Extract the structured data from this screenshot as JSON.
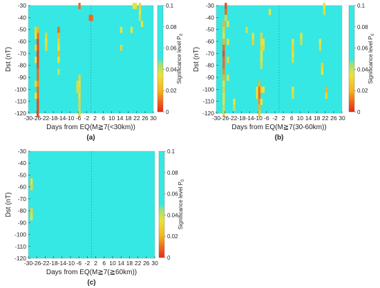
{
  "figure": {
    "colorbar": {
      "label": "Significance level  P",
      "label_subscript": "0",
      "ticks": [
        "0.1",
        "0.08",
        "0.06",
        "0.04",
        "0.02",
        "0"
      ],
      "tick_values": [
        0.1,
        0.08,
        0.06,
        0.04,
        0.02,
        0
      ],
      "stops": [
        {
          "value": 0.0,
          "color": "#e8281c"
        },
        {
          "value": 0.01,
          "color": "#f06a1a"
        },
        {
          "value": 0.02,
          "color": "#f4b51e"
        },
        {
          "value": 0.035,
          "color": "#e9e23a"
        },
        {
          "value": 0.045,
          "color": "#9ee07a"
        },
        {
          "value": 0.05,
          "color": "#35e8e4"
        },
        {
          "value": 0.1,
          "color": "#35e8e4"
        }
      ]
    }
  },
  "chart_data": [
    {
      "type": "heatmap",
      "panel_label": "(a)",
      "xlabel": "Days from EQ(M≧7(<30km))",
      "ylabel": "Dst (nT)",
      "xlim": [
        -30,
        30
      ],
      "ylim": [
        -120,
        -30
      ],
      "x_ticks": [
        -30,
        -26,
        -22,
        -18,
        -14,
        -10,
        -6,
        -2,
        2,
        6,
        10,
        14,
        18,
        22,
        26,
        30
      ],
      "y_ticks": [
        -30,
        -40,
        -50,
        -60,
        -70,
        -80,
        -90,
        -100,
        -110,
        -120
      ],
      "background_value": 0.1,
      "cells": [
        {
          "day": -26,
          "dst": -50,
          "p": 0.02
        },
        {
          "day": -26,
          "dst": -55,
          "p": 0.01
        },
        {
          "day": -26,
          "dst": -60,
          "p": 0.005
        },
        {
          "day": -26,
          "dst": -65,
          "p": 0.005
        },
        {
          "day": -26,
          "dst": -70,
          "p": 0.003
        },
        {
          "day": -26,
          "dst": -75,
          "p": 0.003
        },
        {
          "day": -26,
          "dst": -80,
          "p": 0.005
        },
        {
          "day": -26,
          "dst": -85,
          "p": 0.01
        },
        {
          "day": -26,
          "dst": -90,
          "p": 0.01
        },
        {
          "day": -26,
          "dst": -95,
          "p": 0.015
        },
        {
          "day": -26,
          "dst": -100,
          "p": 0.01
        },
        {
          "day": -26,
          "dst": -105,
          "p": 0.01
        },
        {
          "day": -26,
          "dst": -110,
          "p": 0.005
        },
        {
          "day": -26,
          "dst": -115,
          "p": 0.005
        },
        {
          "day": -26,
          "dst": -120,
          "p": 0.005
        },
        {
          "day": -27,
          "dst": -50,
          "p": 0.03
        },
        {
          "day": -27,
          "dst": -55,
          "p": 0.035
        },
        {
          "day": -27,
          "dst": -65,
          "p": 0.03
        },
        {
          "day": -27,
          "dst": -75,
          "p": 0.035
        },
        {
          "day": -27,
          "dst": -95,
          "p": 0.03
        },
        {
          "day": -27,
          "dst": -105,
          "p": 0.035
        },
        {
          "day": -22,
          "dst": -55,
          "p": 0.03
        },
        {
          "day": -22,
          "dst": -60,
          "p": 0.035
        },
        {
          "day": -22,
          "dst": -65,
          "p": 0.03
        },
        {
          "day": -16,
          "dst": -50,
          "p": 0.01
        },
        {
          "day": -16,
          "dst": -55,
          "p": 0.02
        },
        {
          "day": -16,
          "dst": -60,
          "p": 0.03
        },
        {
          "day": -16,
          "dst": -65,
          "p": 0.035
        },
        {
          "day": -16,
          "dst": -70,
          "p": 0.02
        },
        {
          "day": -16,
          "dst": -75,
          "p": 0.035
        },
        {
          "day": -16,
          "dst": -85,
          "p": 0.04
        },
        {
          "day": -6,
          "dst": -30,
          "p": 0.01
        },
        {
          "day": -6,
          "dst": -90,
          "p": 0.03
        },
        {
          "day": -6,
          "dst": -95,
          "p": 0.035
        },
        {
          "day": -6,
          "dst": -100,
          "p": 0.03
        },
        {
          "day": -6,
          "dst": -105,
          "p": 0.035
        },
        {
          "day": -6,
          "dst": -110,
          "p": 0.03
        },
        {
          "day": -6,
          "dst": -115,
          "p": 0.04
        },
        {
          "day": -6,
          "dst": -120,
          "p": 0.035
        },
        {
          "day": -7,
          "dst": -95,
          "p": 0.04
        },
        {
          "day": -7,
          "dst": -100,
          "p": 0.04
        },
        {
          "day": -1,
          "dst": -40,
          "p": 0.01
        },
        {
          "day": 0,
          "dst": -40,
          "p": 0.01
        },
        {
          "day": 14,
          "dst": -50,
          "p": 0.035
        },
        {
          "day": 14,
          "dst": -65,
          "p": 0.03
        },
        {
          "day": 19,
          "dst": -50,
          "p": 0.035
        },
        {
          "day": 20,
          "dst": -30,
          "p": 0.035
        },
        {
          "day": 21,
          "dst": -30,
          "p": 0.035
        },
        {
          "day": 23,
          "dst": -30,
          "p": 0.03
        },
        {
          "day": 23,
          "dst": -35,
          "p": 0.035
        },
        {
          "day": 23,
          "dst": -40,
          "p": 0.04
        },
        {
          "day": 24,
          "dst": -45,
          "p": 0.035
        }
      ]
    },
    {
      "type": "heatmap",
      "panel_label": "(b)",
      "xlabel": "Days from EQ(M≧7(30-60km))",
      "ylabel": "Dst (nT)",
      "xlim": [
        -30,
        30
      ],
      "ylim": [
        -120,
        -30
      ],
      "x_ticks": [
        -30,
        -26,
        -22,
        -18,
        -14,
        -10,
        -6,
        -2,
        2,
        6,
        10,
        14,
        18,
        22,
        26,
        30
      ],
      "y_ticks": [
        -30,
        -40,
        -50,
        -60,
        -70,
        -80,
        -90,
        -100,
        -110,
        -120
      ],
      "background_value": 0.1,
      "cells": [
        {
          "day": -26,
          "dst": -30,
          "p": 0.005
        },
        {
          "day": -26,
          "dst": -35,
          "p": 0.01
        },
        {
          "day": -26,
          "dst": -40,
          "p": 0.03
        },
        {
          "day": -27,
          "dst": -45,
          "p": 0.02
        },
        {
          "day": -27,
          "dst": -50,
          "p": 0.03
        },
        {
          "day": -27,
          "dst": -55,
          "p": 0.035
        },
        {
          "day": -27,
          "dst": -60,
          "p": 0.02
        },
        {
          "day": -27,
          "dst": -65,
          "p": 0.01
        },
        {
          "day": -27,
          "dst": -70,
          "p": 0.005
        },
        {
          "day": -27,
          "dst": -75,
          "p": 0.01
        },
        {
          "day": -27,
          "dst": -80,
          "p": 0.01
        },
        {
          "day": -27,
          "dst": -85,
          "p": 0.015
        },
        {
          "day": -27,
          "dst": -90,
          "p": 0.02
        },
        {
          "day": -27,
          "dst": -95,
          "p": 0.035
        },
        {
          "day": -27,
          "dst": -100,
          "p": 0.03
        },
        {
          "day": -27,
          "dst": -105,
          "p": 0.035
        },
        {
          "day": -27,
          "dst": -110,
          "p": 0.035
        },
        {
          "day": -27,
          "dst": -115,
          "p": 0.04
        },
        {
          "day": -27,
          "dst": -120,
          "p": 0.03
        },
        {
          "day": -25,
          "dst": -45,
          "p": 0.035
        },
        {
          "day": -25,
          "dst": -60,
          "p": 0.035
        },
        {
          "day": -25,
          "dst": -75,
          "p": 0.03
        },
        {
          "day": -25,
          "dst": -90,
          "p": 0.035
        },
        {
          "day": -22,
          "dst": -110,
          "p": 0.035
        },
        {
          "day": -22,
          "dst": -115,
          "p": 0.04
        },
        {
          "day": -16,
          "dst": -50,
          "p": 0.04
        },
        {
          "day": -13,
          "dst": -55,
          "p": 0.035
        },
        {
          "day": -13,
          "dst": -60,
          "p": 0.03
        },
        {
          "day": -11,
          "dst": -100,
          "p": 0.035
        },
        {
          "day": -11,
          "dst": -105,
          "p": 0.035
        },
        {
          "day": -10,
          "dst": -95,
          "p": 0.02
        },
        {
          "day": -10,
          "dst": -100,
          "p": 0.01
        },
        {
          "day": -10,
          "dst": -105,
          "p": 0.01
        },
        {
          "day": -10,
          "dst": -110,
          "p": 0.015
        },
        {
          "day": -10,
          "dst": -115,
          "p": 0.02
        },
        {
          "day": -10,
          "dst": -120,
          "p": 0.03
        },
        {
          "day": -9,
          "dst": -55,
          "p": 0.03
        },
        {
          "day": -9,
          "dst": -60,
          "p": 0.035
        },
        {
          "day": -9,
          "dst": -65,
          "p": 0.03
        },
        {
          "day": -9,
          "dst": -70,
          "p": 0.035
        },
        {
          "day": -9,
          "dst": -75,
          "p": 0.035
        },
        {
          "day": -9,
          "dst": -80,
          "p": 0.04
        },
        {
          "day": -9,
          "dst": -100,
          "p": 0.03
        },
        {
          "day": -9,
          "dst": -110,
          "p": 0.035
        },
        {
          "day": -8,
          "dst": -60,
          "p": 0.035
        },
        {
          "day": -8,
          "dst": -65,
          "p": 0.04
        },
        {
          "day": -8,
          "dst": -100,
          "p": 0.035
        },
        {
          "day": -5,
          "dst": -35,
          "p": 0.035
        },
        {
          "day": 6,
          "dst": -60,
          "p": 0.035
        },
        {
          "day": 6,
          "dst": -65,
          "p": 0.03
        },
        {
          "day": 6,
          "dst": -70,
          "p": 0.035
        },
        {
          "day": 6,
          "dst": -75,
          "p": 0.04
        },
        {
          "day": 6,
          "dst": -100,
          "p": 0.035
        },
        {
          "day": 6,
          "dst": -105,
          "p": 0.04
        },
        {
          "day": 10,
          "dst": -55,
          "p": 0.035
        },
        {
          "day": 10,
          "dst": -60,
          "p": 0.04
        },
        {
          "day": 19,
          "dst": -60,
          "p": 0.035
        },
        {
          "day": 19,
          "dst": -65,
          "p": 0.04
        },
        {
          "day": 20,
          "dst": -80,
          "p": 0.03
        },
        {
          "day": 20,
          "dst": -85,
          "p": 0.035
        },
        {
          "day": 21,
          "dst": -30,
          "p": 0.035
        },
        {
          "day": 21,
          "dst": -35,
          "p": 0.04
        },
        {
          "day": 22,
          "dst": -100,
          "p": 0.02
        },
        {
          "day": 22,
          "dst": -105,
          "p": 0.03
        }
      ]
    },
    {
      "type": "heatmap",
      "panel_label": "(c)",
      "xlabel": "Days from EQ(M≧7(≧60km))",
      "ylabel": "Dst (nT)",
      "xlim": [
        -30,
        30
      ],
      "ylim": [
        -120,
        -30
      ],
      "x_ticks": [
        -30,
        -26,
        -22,
        -18,
        -14,
        -10,
        -6,
        -2,
        2,
        6,
        10,
        14,
        18,
        22,
        26,
        30
      ],
      "y_ticks": [
        -30,
        -40,
        -50,
        -60,
        -70,
        -80,
        -90,
        -100,
        -110,
        -120
      ],
      "background_value": 0.1,
      "cells": [
        {
          "day": -29,
          "dst": -55,
          "p": 0.035
        },
        {
          "day": -29,
          "dst": -60,
          "p": 0.03
        },
        {
          "day": -29,
          "dst": -80,
          "p": 0.03
        },
        {
          "day": -29,
          "dst": -85,
          "p": 0.035
        }
      ]
    }
  ]
}
